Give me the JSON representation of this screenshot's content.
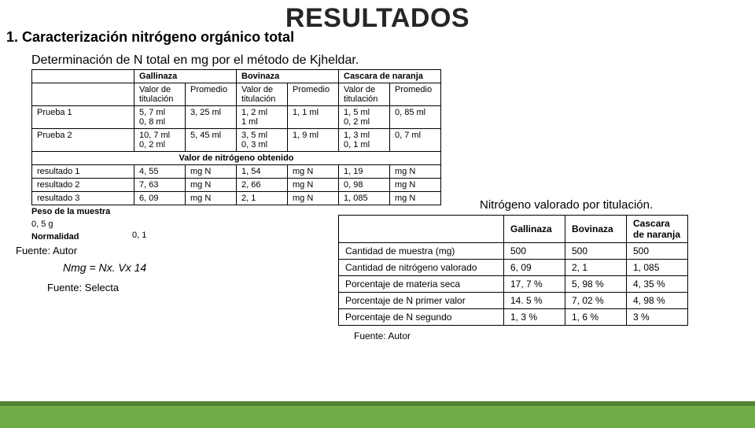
{
  "title": "RESULTADOS",
  "section": "1. Caracterización nitrógeno orgánico total",
  "subtitle": "Determinación de N total en mg por el método de Kjheldar.",
  "t1": {
    "headers": [
      "Gallinaza",
      "Bovinaza",
      "Cascara de naranja"
    ],
    "subhead": [
      "Valor de titulación",
      "Promedio",
      "Valor de titulación",
      "Promedio",
      "Valor de titulación",
      "Promedio"
    ],
    "rows": [
      {
        "label": "Prueba 1",
        "c": [
          "5, 7 ml\n0, 8 ml",
          "3, 25 ml",
          "1, 2 ml\n1 ml",
          "1, 1 ml",
          "1, 5 ml\n0, 2 ml",
          "0, 85 ml"
        ]
      },
      {
        "label": "Prueba 2",
        "c": [
          "10, 7 ml\n0, 2 ml",
          "5, 45 ml",
          "3, 5 ml\n0, 3 ml",
          "1, 9 ml",
          "1, 3 ml\n0, 1 ml",
          "0, 7 ml"
        ]
      }
    ],
    "sectitle": "Valor de nitrógeno obtenido",
    "rows2": [
      {
        "label": "resultado 1",
        "c": [
          "4, 55",
          "mg N",
          "1, 54",
          "mg N",
          "1, 19",
          "mg N"
        ]
      },
      {
        "label": "resultado 2",
        "c": [
          "7, 63",
          "mg N",
          "2, 66",
          "mg N",
          "0, 98",
          "mg N"
        ]
      },
      {
        "label": "resultado 3",
        "c": [
          "6, 09",
          "mg N",
          "2, 1",
          "mg N",
          "1, 085",
          "mg N"
        ]
      }
    ]
  },
  "peso": "Peso de la muestra",
  "pesoval": "0, 5 g",
  "norm_label": "Normalidad",
  "norm_val": "0, 1",
  "fuente1": "Fuente: Autor",
  "formula": "Nmg = Nx. Vx 14",
  "fuente2": "Fuente: Selecta",
  "t2": {
    "title": "Nitrógeno valorado por titulación.",
    "headers": [
      "Gallinaza",
      "Bovinaza",
      "Cascara de naranja"
    ],
    "rows": [
      {
        "label": "Cantidad de muestra (mg)",
        "c": [
          "500",
          "500",
          "500"
        ]
      },
      {
        "label": "Cantidad de nitrógeno valorado",
        "c": [
          "6, 09",
          "2, 1",
          "1, 085"
        ]
      },
      {
        "label": "Porcentaje de materia seca",
        "c": [
          "17, 7 %",
          "5, 98 %",
          "4, 35 %"
        ]
      },
      {
        "label": "Porcentaje de N primer valor",
        "c": [
          "14. 5 %",
          "7, 02 %",
          "4, 98 %"
        ]
      },
      {
        "label": "Porcentaje de N segundo",
        "c": [
          "1, 3 %",
          "1, 6 %",
          "3 %"
        ]
      }
    ],
    "fuente": "Fuente: Autor"
  }
}
